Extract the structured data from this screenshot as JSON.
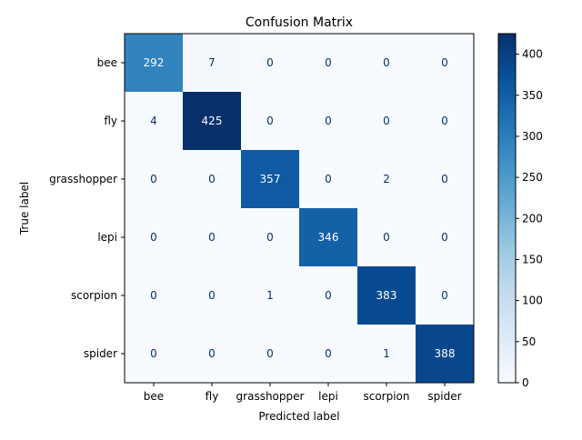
{
  "chart_data": {
    "type": "heatmap",
    "title": "Confusion Matrix",
    "xlabel": "Predicted label",
    "ylabel": "True label",
    "categories": [
      "bee",
      "fly",
      "grasshopper",
      "lepi",
      "scorpion",
      "spider"
    ],
    "matrix": [
      [
        292,
        7,
        0,
        0,
        0,
        0
      ],
      [
        4,
        425,
        0,
        0,
        0,
        0
      ],
      [
        0,
        0,
        357,
        0,
        2,
        0
      ],
      [
        0,
        0,
        0,
        346,
        0,
        0
      ],
      [
        0,
        0,
        1,
        0,
        383,
        0
      ],
      [
        0,
        0,
        0,
        0,
        1,
        388
      ]
    ],
    "colorbar": {
      "min": 0,
      "max": 425,
      "ticks": [
        0,
        50,
        100,
        150,
        200,
        250,
        300,
        350,
        400
      ]
    },
    "colormap": [
      "#f7fbff",
      "#deebf7",
      "#c6dbef",
      "#9ecae1",
      "#6baed6",
      "#4292c6",
      "#2171b5",
      "#08519c",
      "#08306b"
    ],
    "text_color_light": "#ffffff",
    "text_color_dark": "#08306b"
  }
}
